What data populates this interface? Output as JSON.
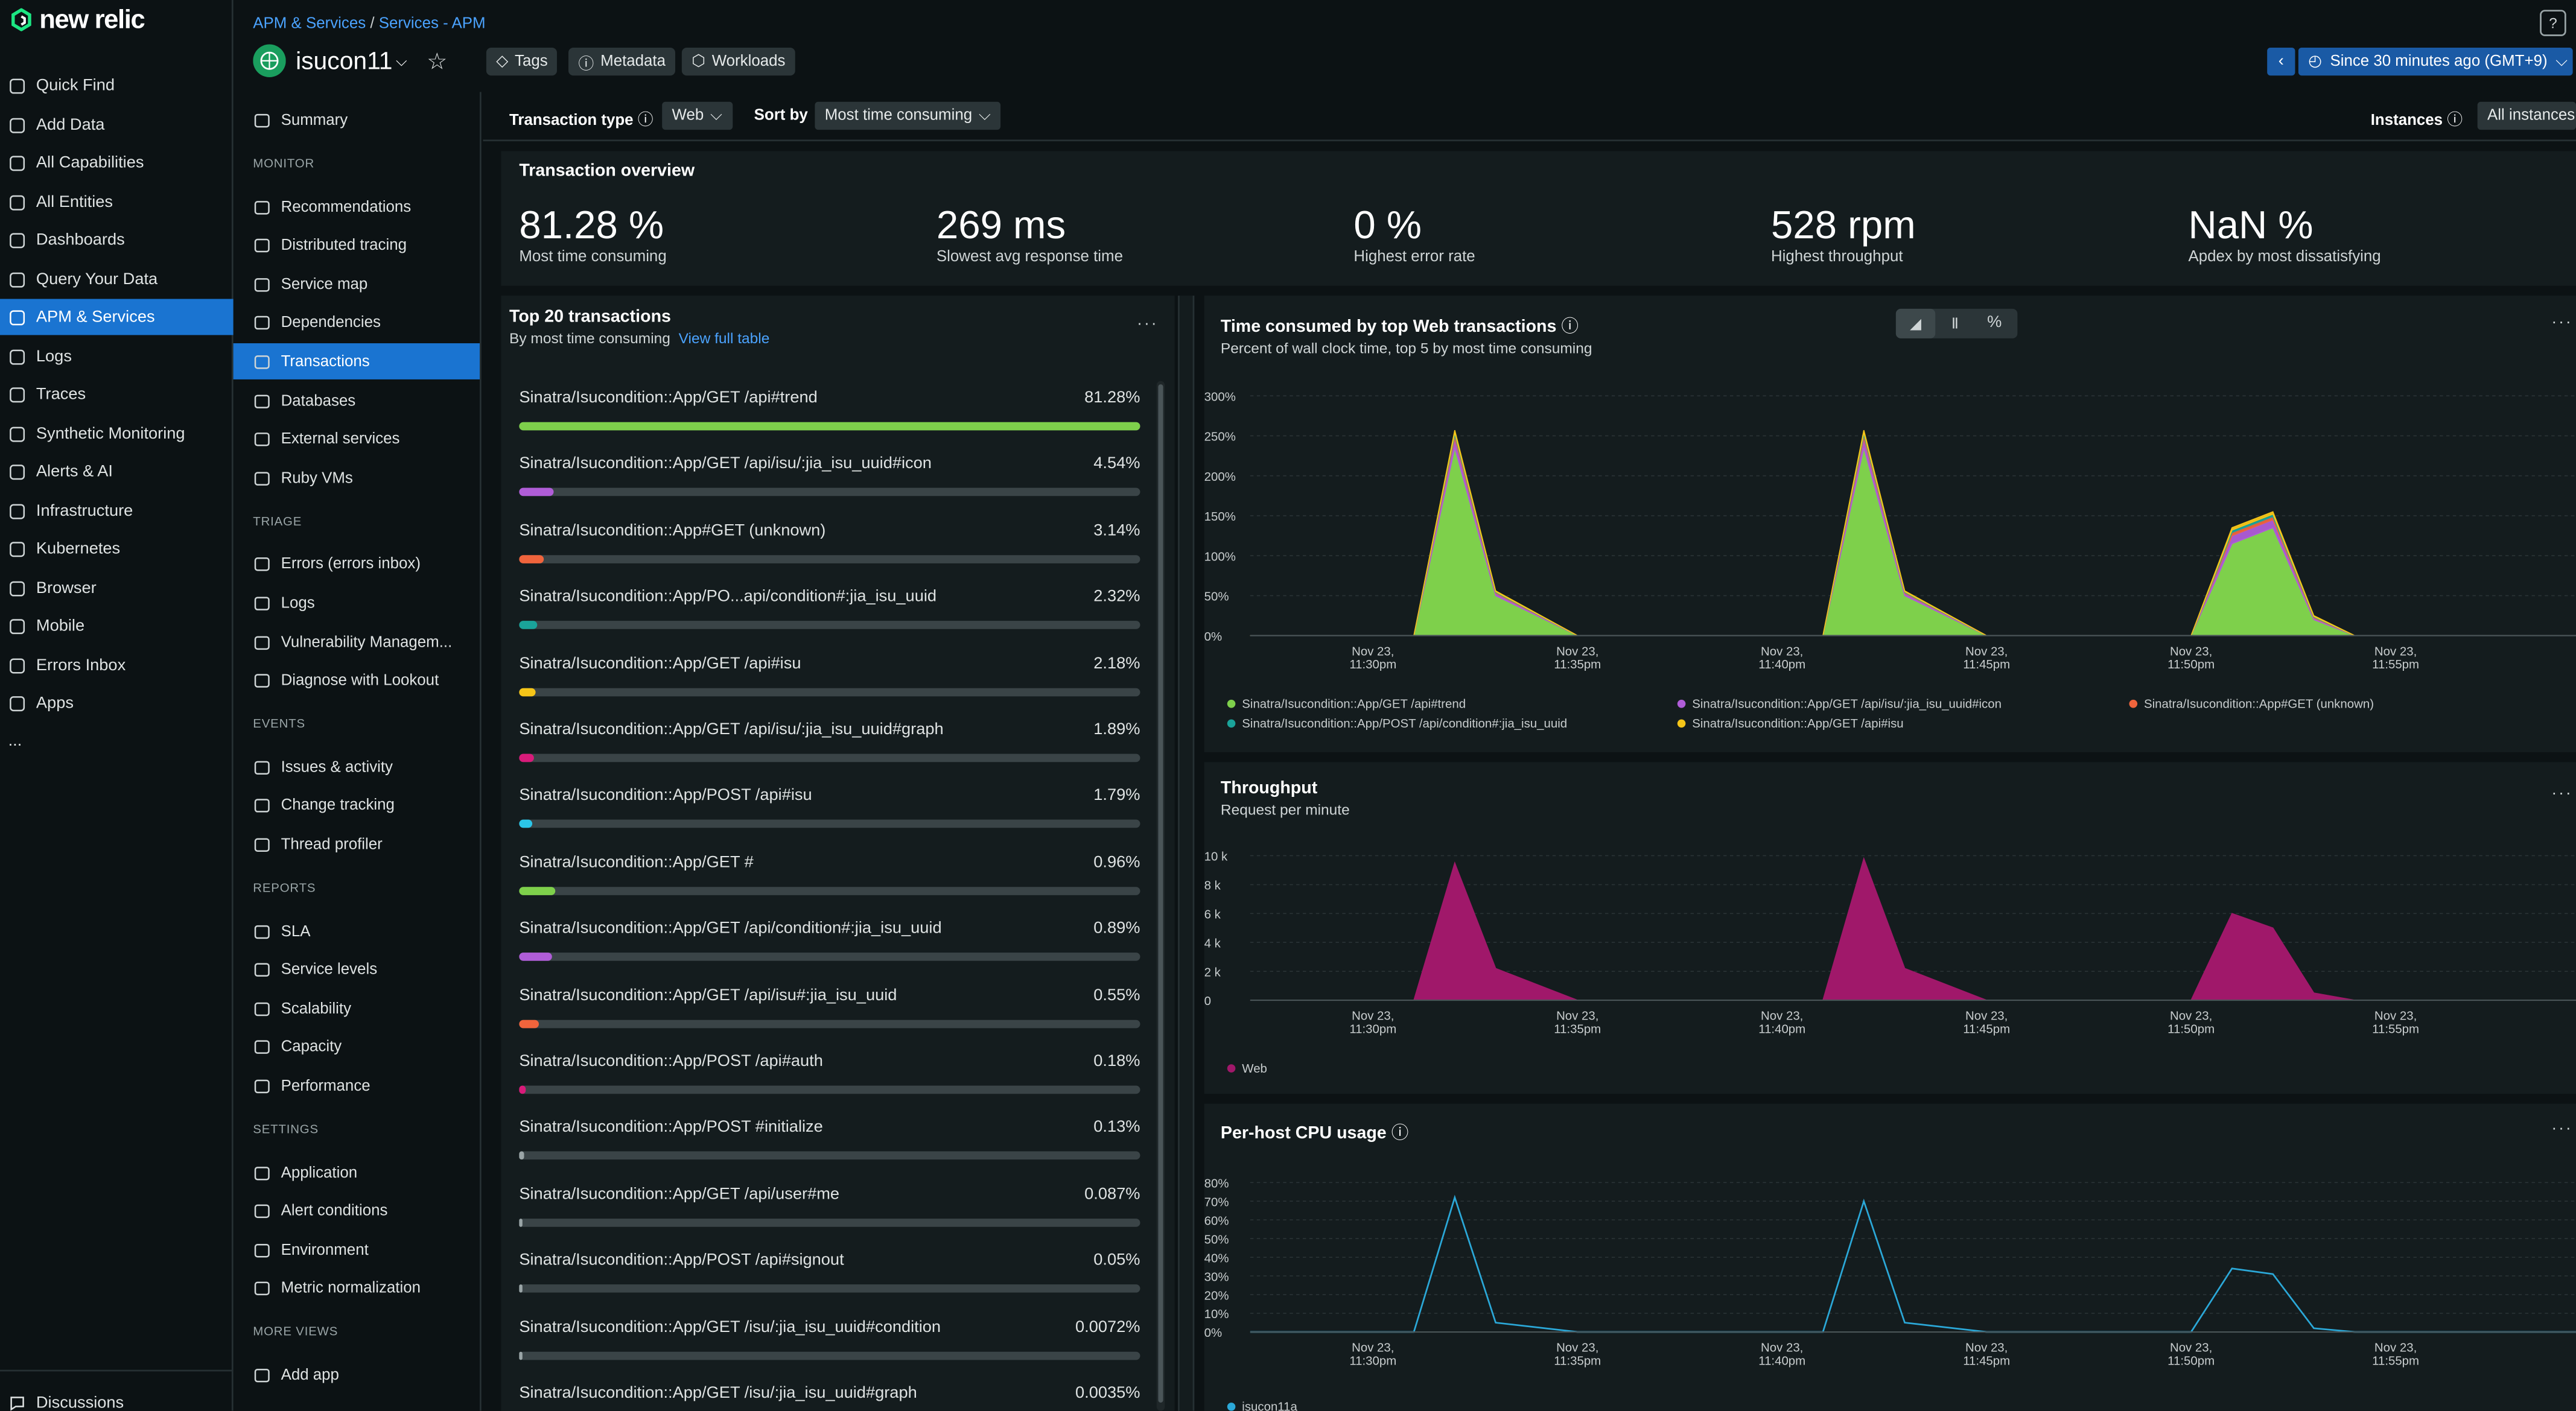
{
  "brand": {
    "logo_text": "new relic"
  },
  "nav": {
    "items": [
      {
        "label": "Quick Find",
        "icon": "search-icon"
      },
      {
        "label": "Add Data",
        "icon": "plus-icon"
      },
      {
        "label": "All Capabilities",
        "icon": "grid-icon"
      },
      {
        "label": "All Entities",
        "icon": "list-icon"
      },
      {
        "label": "Dashboards",
        "icon": "dashboard-icon"
      },
      {
        "label": "Query Your Data",
        "icon": "query-icon"
      },
      {
        "label": "APM & Services",
        "icon": "globe-icon",
        "active": true
      },
      {
        "label": "Logs",
        "icon": "logs-icon"
      },
      {
        "label": "Traces",
        "icon": "traces-icon"
      },
      {
        "label": "Synthetic Monitoring",
        "icon": "synthetics-icon"
      },
      {
        "label": "Alerts & AI",
        "icon": "alert-icon"
      },
      {
        "label": "Infrastructure",
        "icon": "infrastructure-icon"
      },
      {
        "label": "Kubernetes",
        "icon": "kubernetes-icon"
      },
      {
        "label": "Browser",
        "icon": "browser-icon"
      },
      {
        "label": "Mobile",
        "icon": "mobile-icon"
      },
      {
        "label": "Errors Inbox",
        "icon": "inbox-icon"
      },
      {
        "label": "Apps",
        "icon": "apps-icon"
      }
    ],
    "more": "...",
    "footer": "Discussions"
  },
  "header": {
    "breadcrumb": [
      "APM & Services",
      "/",
      "Services - APM"
    ],
    "entity_name": "isucon11",
    "tags_label": "Tags",
    "metadata_label": "Metadata",
    "workloads_label": "Workloads",
    "time_range": "Since 30 minutes ago (GMT+9)",
    "help": "?"
  },
  "subnav": {
    "summary": "Summary",
    "sections": [
      {
        "title": "MONITOR",
        "items": [
          "Recommendations",
          "Distributed tracing",
          "Service map",
          "Dependencies",
          "Transactions",
          "Databases",
          "External services",
          "Ruby VMs"
        ]
      },
      {
        "title": "TRIAGE",
        "items": [
          "Errors (errors inbox)",
          "Logs",
          "Vulnerability Managem...",
          "Diagnose with Lookout"
        ]
      },
      {
        "title": "EVENTS",
        "items": [
          "Issues & activity",
          "Change tracking",
          "Thread profiler"
        ]
      },
      {
        "title": "REPORTS",
        "items": [
          "SLA",
          "Service levels",
          "Scalability",
          "Capacity",
          "Performance"
        ]
      },
      {
        "title": "SETTINGS",
        "items": [
          "Application",
          "Alert conditions",
          "Environment",
          "Metric normalization"
        ]
      },
      {
        "title": "MORE VIEWS",
        "items": [
          "Add app"
        ]
      }
    ],
    "active": "Transactions"
  },
  "filters": {
    "type_label": "Transaction type",
    "type_value": "Web",
    "sort_label": "Sort by",
    "sort_value": "Most time consuming",
    "instances_label": "Instances",
    "instances_value": "All instances"
  },
  "overview": {
    "title": "Transaction overview",
    "kpis": [
      {
        "value": "81.28 %",
        "label": "Most time consuming"
      },
      {
        "value": "269 ms",
        "label": "Slowest avg response time"
      },
      {
        "value": "0 %",
        "label": "Highest error rate"
      },
      {
        "value": "528 rpm",
        "label": "Highest throughput"
      },
      {
        "value": "NaN %",
        "label": "Apdex by most dissatisfying"
      }
    ]
  },
  "top20": {
    "title": "Top 20 transactions",
    "subtitle": "By most time consuming",
    "link": "View full table",
    "rows": [
      {
        "name": "Sinatra/Isucondition::App/GET /api#trend",
        "pct": "81.28%",
        "value": 81.28,
        "color": "#7ed04b"
      },
      {
        "name": "Sinatra/Isucondition::App/GET /api/isu/:jia_isu_uuid#icon",
        "pct": "4.54%",
        "value": 4.54,
        "color": "#b05dd8"
      },
      {
        "name": "Sinatra/Isucondition::App#GET (unknown)",
        "pct": "3.14%",
        "value": 3.14,
        "color": "#f0643c"
      },
      {
        "name": "Sinatra/Isucondition::App/PO...api/condition#:jia_isu_uuid",
        "pct": "2.32%",
        "value": 2.32,
        "color": "#1aa39a"
      },
      {
        "name": "Sinatra/Isucondition::App/GET /api#isu",
        "pct": "2.18%",
        "value": 2.18,
        "color": "#f5c518"
      },
      {
        "name": "Sinatra/Isucondition::App/GET /api/isu/:jia_isu_uuid#graph",
        "pct": "1.89%",
        "value": 1.89,
        "color": "#d81b7a"
      },
      {
        "name": "Sinatra/Isucondition::App/POST /api#isu",
        "pct": "1.79%",
        "value": 1.79,
        "color": "#2bc5e8"
      },
      {
        "name": "Sinatra/Isucondition::App/GET #",
        "pct": "0.96%",
        "value": 0.96,
        "color": "#7ed04b"
      },
      {
        "name": "Sinatra/Isucondition::App/GET /api/condition#:jia_isu_uuid",
        "pct": "0.89%",
        "value": 0.89,
        "color": "#b05dd8"
      },
      {
        "name": "Sinatra/Isucondition::App/GET /api/isu#:jia_isu_uuid",
        "pct": "0.55%",
        "value": 0.55,
        "color": "#f0643c"
      },
      {
        "name": "Sinatra/Isucondition::App/POST /api#auth",
        "pct": "0.18%",
        "value": 0.18,
        "color": "#d81b7a"
      },
      {
        "name": "Sinatra/Isucondition::App/POST #initialize",
        "pct": "0.13%",
        "value": 0.13,
        "color": "#9aa5a7"
      },
      {
        "name": "Sinatra/Isucondition::App/GET /api/user#me",
        "pct": "0.087%",
        "value": 0.087,
        "color": "#9aa5a7"
      },
      {
        "name": "Sinatra/Isucondition::App/POST /api#signout",
        "pct": "0.05%",
        "value": 0.05,
        "color": "#9aa5a7"
      },
      {
        "name": "Sinatra/Isucondition::App/GET /isu/:jia_isu_uuid#condition",
        "pct": "0.0072%",
        "value": 0.0072,
        "color": "#9aa5a7"
      },
      {
        "name": "Sinatra/Isucondition::App/GET /isu/:jia_isu_uuid#graph",
        "pct": "0.0035%",
        "value": 0.0035,
        "color": "#9aa5a7"
      }
    ]
  },
  "chart_data": [
    {
      "type": "area",
      "title": "Time consumed by top Web transactions",
      "subtitle": "Percent of wall clock time, top 5 by most time consuming",
      "x": [
        "Nov 23, 11:27pm",
        "Nov 23, 11:31pm",
        "Nov 23, 11:32pm",
        "Nov 23, 11:33pm",
        "Nov 23, 11:35pm",
        "Nov 23, 11:36pm",
        "Nov 23, 11:41pm",
        "Nov 23, 11:42pm",
        "Nov 23, 11:43pm",
        "Nov 23, 11:45pm",
        "Nov 23, 11:46pm",
        "Nov 23, 11:50pm",
        "Nov 23, 11:51pm",
        "Nov 23, 11:52pm",
        "Nov 23, 11:53pm",
        "Nov 23, 11:54pm",
        "Nov 23, 11:55pm",
        "Nov 23, 11:57pm"
      ],
      "xticks": [
        [
          "Nov 23,",
          "11:30pm"
        ],
        [
          "Nov 23,",
          "11:35pm"
        ],
        [
          "Nov 23,",
          "11:40pm"
        ],
        [
          "Nov 23,",
          "11:45pm"
        ],
        [
          "Nov 23,",
          "11:50pm"
        ],
        [
          "Nov 23,",
          "11:55pm"
        ]
      ],
      "yticks": [
        "0%",
        "50%",
        "100%",
        "150%",
        "200%",
        "250%",
        "300%"
      ],
      "ylim": [
        0,
        300
      ],
      "series": [
        {
          "name": "Sinatra/Isucondition::App/GET /api#trend",
          "color": "#7ed04b",
          "values": [
            0,
            0,
            235,
            50,
            0,
            0,
            0,
            235,
            50,
            0,
            0,
            0,
            115,
            135,
            20,
            0,
            0,
            0
          ]
        },
        {
          "name": "Sinatra/Isucondition::App/GET /api/isu/:jia_isu_uuid#icon",
          "color": "#b05dd8",
          "values": [
            0,
            0,
            12,
            3,
            0,
            0,
            0,
            12,
            3,
            0,
            0,
            0,
            10,
            10,
            2,
            0,
            0,
            0
          ]
        },
        {
          "name": "Sinatra/Isucondition::App#GET (unknown)",
          "color": "#f0643c",
          "values": [
            0,
            0,
            4,
            1,
            0,
            0,
            0,
            4,
            1,
            0,
            0,
            0,
            4,
            4,
            1,
            0,
            0,
            0
          ]
        },
        {
          "name": "Sinatra/Isucondition::App/POST /api/condition#:jia_isu_uuid",
          "color": "#1aa39a",
          "values": [
            0,
            0,
            3,
            1,
            0,
            0,
            0,
            3,
            1,
            0,
            0,
            0,
            3,
            3,
            1,
            0,
            0,
            0
          ]
        },
        {
          "name": "Sinatra/Isucondition::App/GET /api#isu",
          "color": "#f5c518",
          "values": [
            0,
            0,
            3,
            1,
            0,
            0,
            0,
            3,
            1,
            0,
            0,
            0,
            3,
            3,
            1,
            0,
            0,
            0
          ]
        }
      ]
    },
    {
      "type": "area",
      "title": "Throughput",
      "subtitle": "Request per minute",
      "x": [
        "Nov 23, 11:27pm",
        "Nov 23, 11:31pm",
        "Nov 23, 11:32pm",
        "Nov 23, 11:33pm",
        "Nov 23, 11:35pm",
        "Nov 23, 11:36pm",
        "Nov 23, 11:41pm",
        "Nov 23, 11:42pm",
        "Nov 23, 11:43pm",
        "Nov 23, 11:45pm",
        "Nov 23, 11:46pm",
        "Nov 23, 11:50pm",
        "Nov 23, 11:51pm",
        "Nov 23, 11:52pm",
        "Nov 23, 11:53pm",
        "Nov 23, 11:54pm",
        "Nov 23, 11:55pm",
        "Nov 23, 11:57pm"
      ],
      "xticks": [
        [
          "Nov 23,",
          "11:30pm"
        ],
        [
          "Nov 23,",
          "11:35pm"
        ],
        [
          "Nov 23,",
          "11:40pm"
        ],
        [
          "Nov 23,",
          "11:45pm"
        ],
        [
          "Nov 23,",
          "11:50pm"
        ],
        [
          "Nov 23,",
          "11:55pm"
        ]
      ],
      "yticks": [
        "0",
        "2 k",
        "4 k",
        "6 k",
        "8 k",
        "10 k"
      ],
      "ylim": [
        0,
        10000
      ],
      "series": [
        {
          "name": "Web",
          "color": "#a0186a",
          "values": [
            0,
            0,
            9500,
            2200,
            0,
            0,
            0,
            9800,
            2200,
            0,
            0,
            0,
            6000,
            5000,
            500,
            0,
            0,
            0
          ]
        }
      ]
    },
    {
      "type": "line",
      "title": "Per-host CPU usage",
      "x": [
        "Nov 23, 11:27pm",
        "Nov 23, 11:31pm",
        "Nov 23, 11:32pm",
        "Nov 23, 11:33pm",
        "Nov 23, 11:35pm",
        "Nov 23, 11:36pm",
        "Nov 23, 11:41pm",
        "Nov 23, 11:42pm",
        "Nov 23, 11:43pm",
        "Nov 23, 11:45pm",
        "Nov 23, 11:46pm",
        "Nov 23, 11:50pm",
        "Nov 23, 11:51pm",
        "Nov 23, 11:52pm",
        "Nov 23, 11:53pm",
        "Nov 23, 11:54pm",
        "Nov 23, 11:55pm",
        "Nov 23, 11:57pm"
      ],
      "xticks": [
        [
          "Nov 23,",
          "11:30pm"
        ],
        [
          "Nov 23,",
          "11:35pm"
        ],
        [
          "Nov 23,",
          "11:40pm"
        ],
        [
          "Nov 23,",
          "11:45pm"
        ],
        [
          "Nov 23,",
          "11:50pm"
        ],
        [
          "Nov 23,",
          "11:55pm"
        ]
      ],
      "yticks": [
        "0%",
        "10%",
        "20%",
        "30%",
        "40%",
        "50%",
        "60%",
        "70%",
        "80%"
      ],
      "ylim": [
        0,
        80
      ],
      "series": [
        {
          "name": "isucon11a",
          "color": "#2ba8d8",
          "values": [
            0,
            0,
            72,
            5,
            0,
            0,
            0,
            70,
            5,
            0,
            0,
            0,
            34,
            31,
            2,
            0,
            0,
            0
          ]
        }
      ]
    }
  ],
  "icons": {
    "accent": "#1a74d1",
    "entity_icon": "globe-icon",
    "help_icon": "info-icon"
  }
}
